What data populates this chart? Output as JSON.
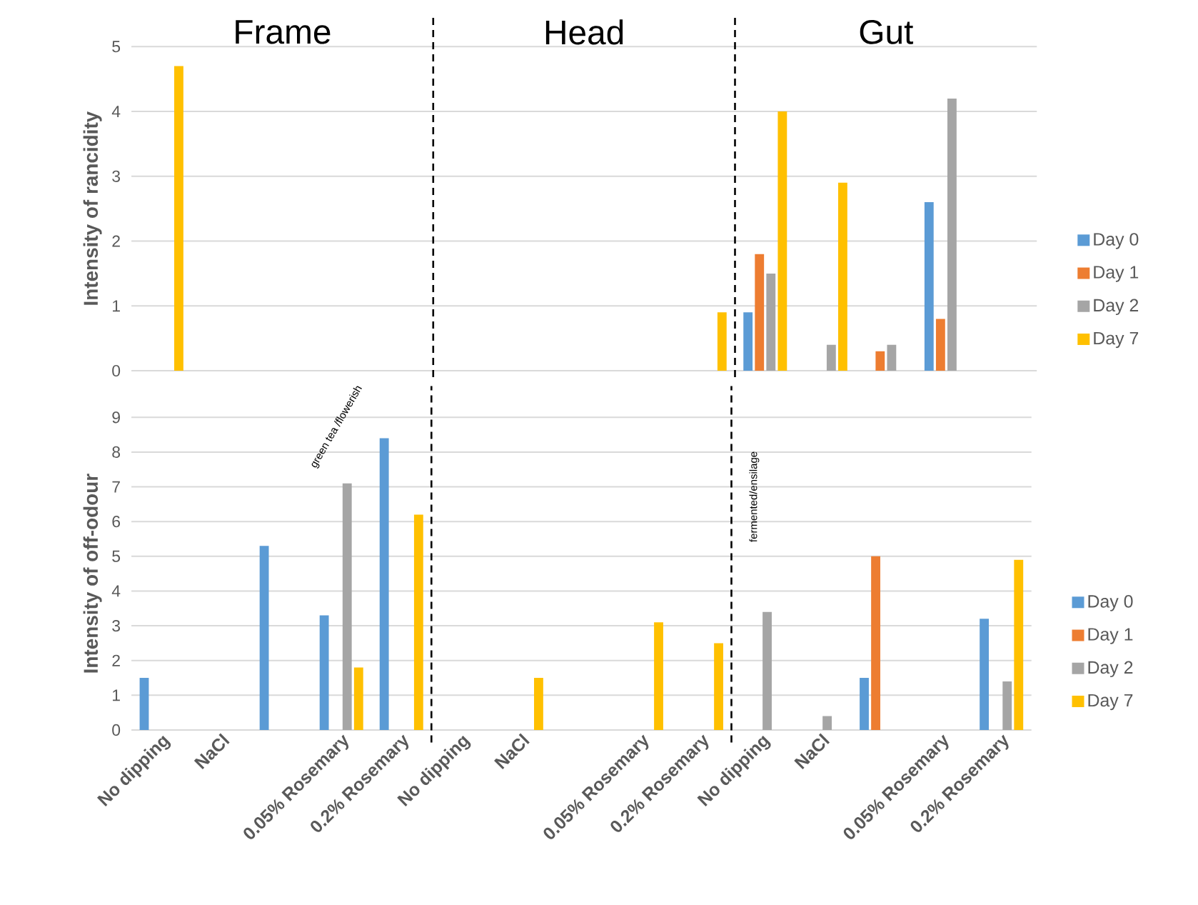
{
  "chart_data": [
    {
      "type": "bar",
      "ylabel": "Intensity of rancidity",
      "categories": [
        null,
        null,
        null,
        null,
        null,
        null,
        null,
        null,
        null,
        null,
        null,
        null,
        null,
        null,
        null
      ],
      "series": [
        {
          "name": "Day 0",
          "color": "#5b9bd5",
          "values": [
            null,
            null,
            null,
            null,
            null,
            null,
            null,
            null,
            null,
            null,
            0.9,
            null,
            null,
            2.6,
            null
          ]
        },
        {
          "name": "Day 1",
          "color": "#ed7d31",
          "values": [
            null,
            null,
            null,
            null,
            null,
            null,
            null,
            null,
            null,
            null,
            1.8,
            null,
            0.3,
            0.8,
            null
          ]
        },
        {
          "name": "Day 2",
          "color": "#a5a5a5",
          "values": [
            null,
            null,
            null,
            null,
            null,
            null,
            null,
            null,
            null,
            null,
            1.5,
            0.4,
            0.4,
            4.2,
            null
          ]
        },
        {
          "name": "Day 7",
          "color": "#ffc000",
          "values": [
            4.7,
            null,
            null,
            null,
            null,
            null,
            null,
            null,
            null,
            0.9,
            4.0,
            2.9,
            null,
            null,
            null
          ]
        }
      ],
      "ylim": [
        0,
        5
      ],
      "yticks": [
        0,
        1,
        2,
        3,
        4,
        5
      ],
      "grid": "y",
      "legend": "right",
      "tick_labels": "y",
      "annotations": [
        "Frame",
        "Head",
        "Gut"
      ]
    },
    {
      "type": "bar",
      "ylabel": "Intensity of off-odour",
      "categories": [
        "No dipping",
        "NaCl",
        null,
        "0.05% Rosemary",
        "0.2% Rosemary",
        "No dipping",
        "NaCl",
        null,
        "0.05% Rosemary",
        "0.2% Rosemary",
        "No dipping",
        "NaCl",
        null,
        "0.05% Rosemary",
        "0.2% Rosemary"
      ],
      "series": [
        {
          "name": "Day 0",
          "color": "#5b9bd5",
          "values": [
            1.5,
            null,
            5.3,
            3.3,
            8.4,
            null,
            null,
            null,
            null,
            null,
            null,
            null,
            1.5,
            null,
            3.2
          ]
        },
        {
          "name": "Day 1",
          "color": "#ed7d31",
          "values": [
            null,
            null,
            null,
            null,
            null,
            null,
            null,
            null,
            null,
            null,
            null,
            null,
            5.0,
            null,
            null
          ]
        },
        {
          "name": "Day 2",
          "color": "#a5a5a5",
          "values": [
            null,
            null,
            null,
            7.1,
            null,
            null,
            null,
            null,
            null,
            null,
            3.4,
            0.4,
            null,
            null,
            1.4
          ]
        },
        {
          "name": "Day 7",
          "color": "#ffc000",
          "values": [
            null,
            null,
            null,
            1.8,
            6.2,
            null,
            1.5,
            null,
            3.1,
            2.5,
            null,
            null,
            null,
            null,
            4.9
          ]
        }
      ],
      "ylim": [
        0,
        9
      ],
      "yticks": [
        0,
        1,
        2,
        3,
        4,
        5,
        6,
        7,
        8,
        9
      ],
      "grid": "y",
      "legend": "right",
      "annotations": [
        "green tea /flowerish",
        "fermented/ensilage"
      ]
    }
  ]
}
